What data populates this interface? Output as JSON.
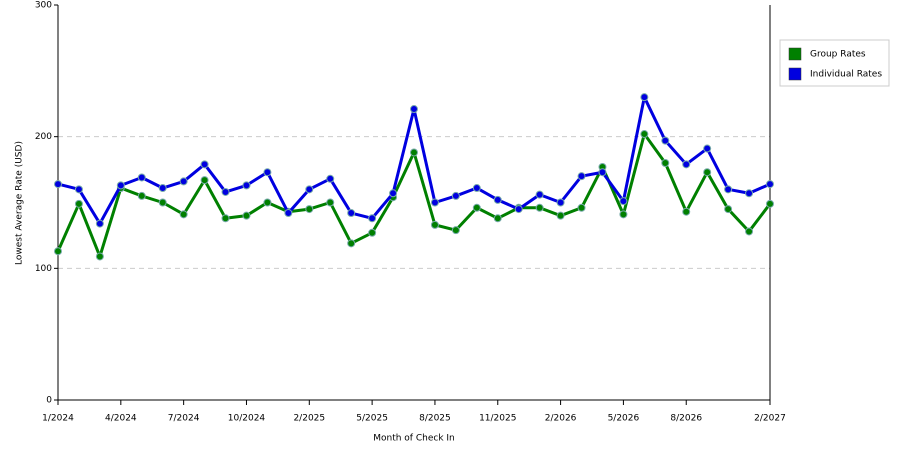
{
  "chart_data": {
    "type": "line",
    "x_label": "Month of Check In",
    "y_label": "Lowest Average Rate (USD)",
    "categories": [
      "1/2024",
      null,
      null,
      "4/2024",
      null,
      null,
      "7/2024",
      null,
      null,
      "10/2024",
      null,
      null,
      "2/2025",
      null,
      null,
      "5/2025",
      null,
      null,
      "8/2025",
      null,
      null,
      "11/2025",
      null,
      null,
      "2/2026",
      null,
      null,
      "5/2026",
      null,
      null,
      "8/2026",
      null,
      null,
      null,
      "2/2027"
    ],
    "series": [
      {
        "name": "Group Rates",
        "color": "#008000",
        "values": [
          113,
          149,
          109,
          161,
          155,
          150,
          141,
          167,
          138,
          140,
          150,
          143,
          145,
          150,
          119,
          127,
          154,
          188,
          133,
          129,
          146,
          138,
          146,
          146,
          140,
          146,
          177,
          141,
          202,
          180,
          143,
          173,
          145,
          128,
          149
        ]
      },
      {
        "name": "Individual Rates",
        "color": "#0000e0",
        "values": [
          164,
          160,
          134,
          163,
          169,
          161,
          166,
          179,
          158,
          163,
          173,
          142,
          160,
          168,
          142,
          138,
          157,
          221,
          150,
          155,
          161,
          152,
          145,
          156,
          150,
          170,
          173,
          151,
          230,
          197,
          179,
          191,
          160,
          157,
          164
        ]
      }
    ],
    "ylim": [
      0,
      300
    ],
    "yticks": [
      0,
      100,
      200,
      300
    ],
    "grid": true,
    "legend": "right"
  }
}
